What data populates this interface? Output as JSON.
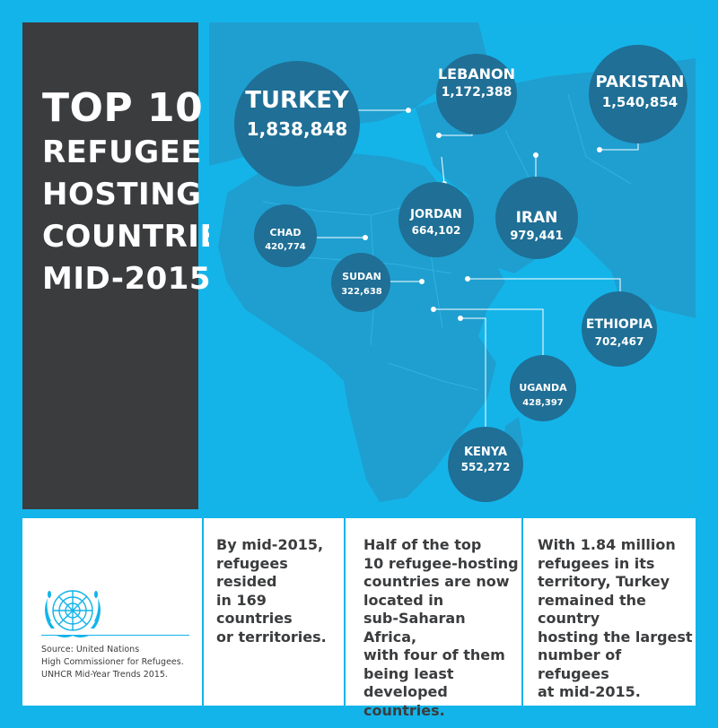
{
  "title": {
    "lines": [
      "TOP 10",
      "REFUGEE",
      "HOSTING",
      "COUNTRIES",
      "MID-2015"
    ]
  },
  "countries": [
    {
      "name": "TURKEY",
      "value": "1,838,848"
    },
    {
      "name": "LEBANON",
      "value": "1,172,388"
    },
    {
      "name": "PAKISTAN",
      "value": "1,540,854"
    },
    {
      "name": "JORDAN",
      "value": "664,102"
    },
    {
      "name": "IRAN",
      "value": "979,441"
    },
    {
      "name": "CHAD",
      "value": "420,774"
    },
    {
      "name": "SUDAN",
      "value": "322,638"
    },
    {
      "name": "ETHIOPIA",
      "value": "702,467"
    },
    {
      "name": "UGANDA",
      "value": "428,397"
    },
    {
      "name": "KENYA",
      "value": "552,272"
    }
  ],
  "facts": [
    {
      "lines": [
        "By mid-2015,",
        "refugees resided",
        "in 169 countries",
        "or territories."
      ]
    },
    {
      "lines": [
        "Half of the top",
        "10 refugee-hosting",
        "countries are now",
        "located in",
        "sub-Saharan Africa,",
        "with four of them",
        "being least",
        "developed countries."
      ]
    },
    {
      "lines": [
        "With 1.84 million",
        "refugees in its",
        "territory, Turkey",
        "remained the country",
        "hosting the largest",
        "number of refugees",
        "at mid-2015."
      ]
    }
  ],
  "source": {
    "lines": [
      "Source: United Nations",
      "High Commissioner for Refugees.",
      "UNHCR Mid-Year Trends 2015."
    ]
  },
  "colors": {
    "background": "#13b4ea",
    "panel": "#3b3c3e",
    "bubble": "#1f6f96",
    "land": "#1e9fd0"
  }
}
